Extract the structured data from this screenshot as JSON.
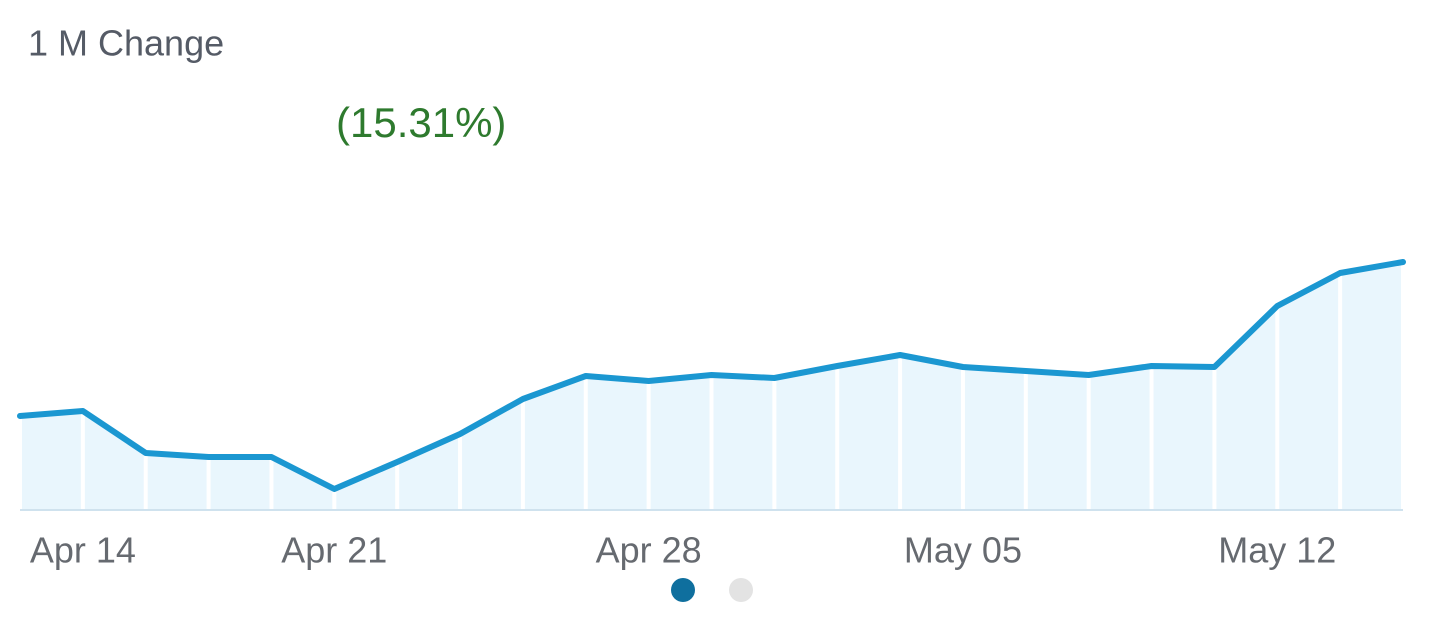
{
  "chart_data": {
    "type": "area",
    "title": "1 M Change",
    "change_label": "(15.31%)",
    "categories": [
      null,
      "Apr 14",
      null,
      null,
      null,
      "Apr 21",
      null,
      null,
      null,
      null,
      "Apr 28",
      null,
      null,
      null,
      null,
      "May 05",
      null,
      null,
      null,
      null,
      "May 12",
      null,
      null
    ],
    "values": [
      94,
      99,
      57,
      53,
      53,
      21,
      48,
      76,
      111,
      134,
      129,
      135,
      132,
      144,
      155,
      143,
      139,
      135,
      144,
      143,
      204,
      237,
      248
    ],
    "color": "#1b97d1",
    "fill": "#e9f6fd",
    "ylim": [
      0,
      300
    ]
  }
}
